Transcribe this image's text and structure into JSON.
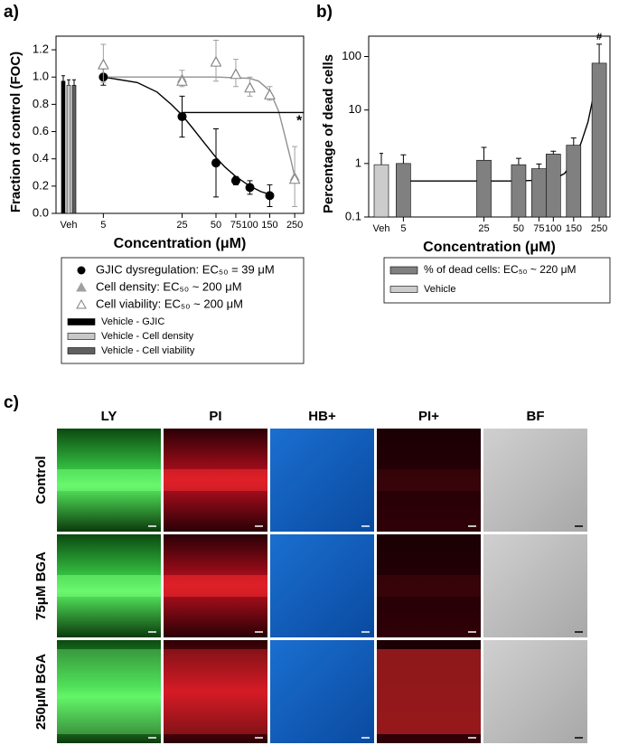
{
  "chart_data": [
    {
      "type": "scatter",
      "panel": "a)",
      "ylabel": "Fraction of control (FOC)",
      "xlabel": "Concentration (μM)",
      "xscale": "log",
      "xlim": [
        1.9,
        300
      ],
      "ylim": [
        0,
        1.3
      ],
      "xticks": [
        5,
        25,
        50,
        75,
        100,
        150,
        250
      ],
      "yticks": [
        {
          "value": 0,
          "label": "0.0"
        },
        0.2,
        0.4,
        0.6,
        0.8,
        {
          "value": 1,
          "label": "1.0"
        },
        1.2
      ],
      "vehicle_label": "Veh",
      "series": [
        {
          "name": "GJIC dysregulation: EC₅₀ = 39 μM",
          "color": "#000000",
          "marker": "circle",
          "x": [
            5,
            25,
            50,
            75,
            100,
            150
          ],
          "values": [
            1.0,
            0.71,
            0.37,
            0.24,
            0.19,
            0.13
          ],
          "errors": [
            0.06,
            0.15,
            0.25,
            0.03,
            0.05,
            0.08
          ]
        },
        {
          "name": "Cell density: EC₅₀ ~ 200 μM",
          "color": "#a0a0a0",
          "marker": "triangle",
          "x": [
            5,
            25,
            50,
            75,
            100,
            150,
            250
          ],
          "values": [
            1.1,
            0.99,
            1.12,
            1.03,
            0.93,
            0.88,
            0.27
          ],
          "errors": [
            0.14,
            0.06,
            0.15,
            0.1,
            0.07,
            0.05,
            0.22
          ]
        },
        {
          "name": "Cell viability: EC₅₀ ~ 200 μM",
          "color": "#808080",
          "marker": "triangle-open",
          "x": [
            5,
            25,
            50,
            75,
            100,
            150,
            250
          ],
          "values": [
            1.09,
            0.97,
            1.11,
            1.02,
            0.92,
            0.87,
            0.25
          ]
        }
      ],
      "vehicle_bars": [
        {
          "name": "Vehicle - GJIC",
          "color": "#000000",
          "value": 0.97,
          "error": 0.04
        },
        {
          "name": "Vehicle - Cell density",
          "color": "#c8c8c8",
          "value": 0.94,
          "error": 0.04
        },
        {
          "name": "Vehicle - Cell viability",
          "color": "#606060",
          "value": 0.94,
          "error": 0.04
        }
      ],
      "fits": [
        {
          "color": "#000000",
          "x": [
            5,
            10,
            15,
            20,
            25,
            30,
            40,
            50,
            60,
            75,
            100,
            125,
            150
          ],
          "values": [
            1.0,
            0.96,
            0.89,
            0.8,
            0.72,
            0.64,
            0.51,
            0.41,
            0.34,
            0.27,
            0.2,
            0.16,
            0.14
          ]
        },
        {
          "color": "#909090",
          "x": [
            5,
            25,
            50,
            75,
            100,
            120,
            150,
            180,
            200,
            230,
            250
          ],
          "values": [
            1.0,
            1.0,
            1.0,
            0.995,
            0.99,
            0.97,
            0.9,
            0.75,
            0.6,
            0.4,
            0.27
          ]
        }
      ],
      "reference_line": {
        "value": 0.74,
        "x": [
          25,
          300
        ]
      },
      "annotation": "*"
    },
    {
      "type": "bar",
      "panel": "b)",
      "ylabel": "Percentage of dead cells",
      "xlabel": "Concentration (μM)",
      "xscale": "log",
      "yscale": "log",
      "xlim": [
        2.5,
        310
      ],
      "ylim": [
        0.1,
        240
      ],
      "xticks": [
        5,
        25,
        50,
        75,
        100,
        150,
        250
      ],
      "yticks": [
        0.1,
        1,
        10,
        100
      ],
      "vehicle_label": "Veh",
      "series": [
        {
          "name": "% of dead cells: EC₅₀ ~ 220 μM",
          "color": "#808080",
          "x": [
            5,
            25,
            50,
            75,
            100,
            150,
            250
          ],
          "values": [
            1.0,
            1.15,
            0.95,
            0.8,
            1.5,
            2.2,
            75
          ],
          "errors": [
            0.45,
            0.85,
            0.3,
            0.18,
            0.2,
            0.8,
            95
          ]
        }
      ],
      "vehicle_bars": [
        {
          "name": "Vehicle",
          "color": "#cccccc",
          "value": 0.95,
          "error": 0.6
        }
      ],
      "fits": [
        {
          "color": "#000000",
          "x": [
            5,
            50,
            100,
            125,
            150,
            175,
            200,
            225,
            250
          ],
          "values": [
            0.47,
            0.47,
            0.5,
            0.65,
            1.1,
            2.5,
            6,
            20,
            60
          ]
        }
      ],
      "annotation": "#"
    }
  ],
  "panel_c": {
    "label": "c)",
    "columns": [
      "LY",
      "PI",
      "HB+",
      "PI+",
      "BF"
    ],
    "rows": [
      "Control",
      "75μM BGA",
      "250μM BGA"
    ]
  }
}
